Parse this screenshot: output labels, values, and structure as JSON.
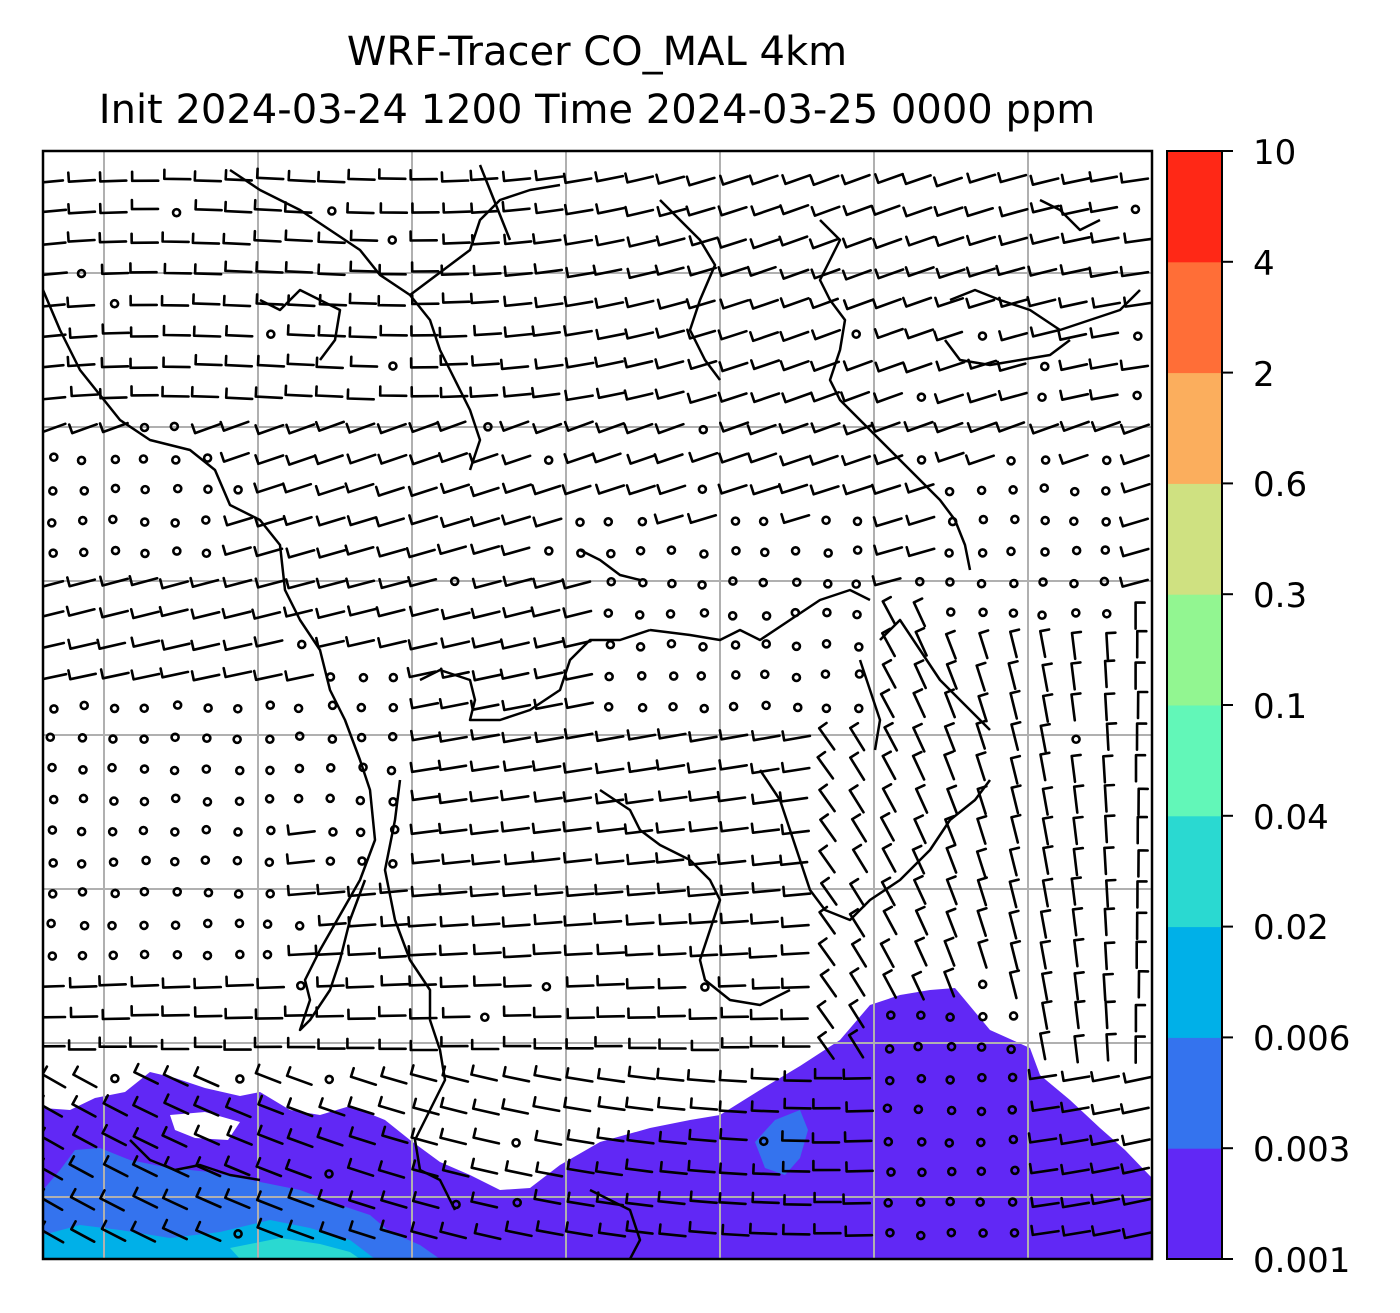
{
  "title": {
    "line1": "WRF-Tracer CO_MAL 4km",
    "line2": "Init 2024-03-24 1200 Time 2024-03-25 0000 ppm"
  },
  "colorbar": {
    "levels": [
      "0.001",
      "0.003",
      "0.006",
      "0.02",
      "0.04",
      "0.1",
      "0.3",
      "0.6",
      "2",
      "4",
      "10"
    ],
    "colors": [
      "#6128f5",
      "#3473ee",
      "#00b0e8",
      "#2ad9d1",
      "#62f7b8",
      "#92f691",
      "#cfe181",
      "#fbae5d",
      "#ff6e37",
      "#ff2816"
    ]
  },
  "map": {
    "background": "#ffffff",
    "gridline_color": "#b0b0b0",
    "coastline_color": "#000000",
    "barb_color": "#000000",
    "tracer_plume_color": "#6128f5"
  }
}
